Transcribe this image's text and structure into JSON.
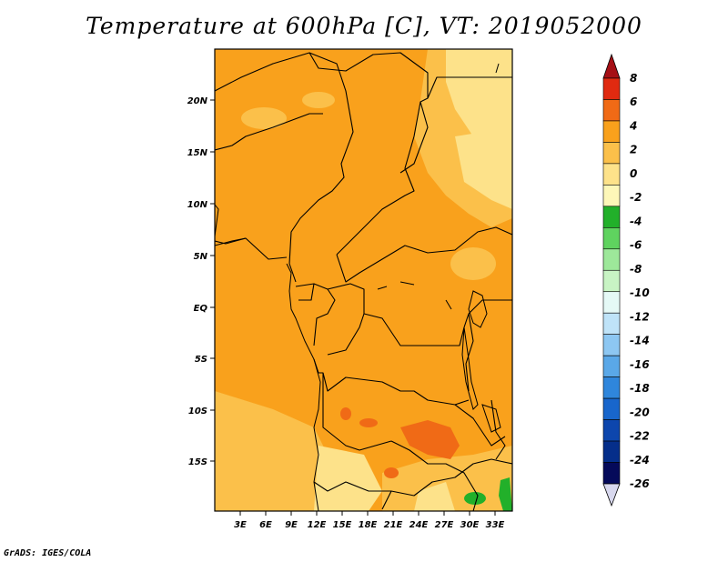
{
  "title": "Temperature at 600hPa [C], VT: 2019052000",
  "credit": "GrADS: IGES/COLA",
  "map": {
    "lon_labels": [
      "3E",
      "6E",
      "9E",
      "12E",
      "15E",
      "18E",
      "21E",
      "24E",
      "27E",
      "30E",
      "33E"
    ],
    "lat_labels": [
      "20N",
      "15N",
      "10N",
      "5N",
      "EQ",
      "5S",
      "10S",
      "15S"
    ],
    "lon_range": [
      0,
      35
    ],
    "lat_range": [
      -20,
      24
    ]
  },
  "colorbar": {
    "labels": [
      "8",
      "6",
      "4",
      "2",
      "0",
      "-2",
      "-4",
      "-6",
      "-8",
      "-10",
      "-12",
      "-14",
      "-16",
      "-18",
      "-20",
      "-22",
      "-24",
      "-26"
    ],
    "colors": [
      "#a50f15",
      "#e02a10",
      "#f06a16",
      "#f9a11c",
      "#fbc04a",
      "#fde28a",
      "#fdf7b8",
      "#22b02a",
      "#5fd35f",
      "#9de89a",
      "#c8f4c4",
      "#e5f9f6",
      "#bfe3f8",
      "#8dc7f2",
      "#5aa8e8",
      "#2f86dc",
      "#1866cc",
      "#0d46ad",
      "#052e8a",
      "#050a5a",
      "#d8d8ee"
    ]
  },
  "colors": {
    "field_main": "#f9a11c",
    "field_light": "#fbc04a",
    "field_pale": "#fde28a",
    "field_warm": "#f06a16",
    "field_green": "#22b02a"
  }
}
